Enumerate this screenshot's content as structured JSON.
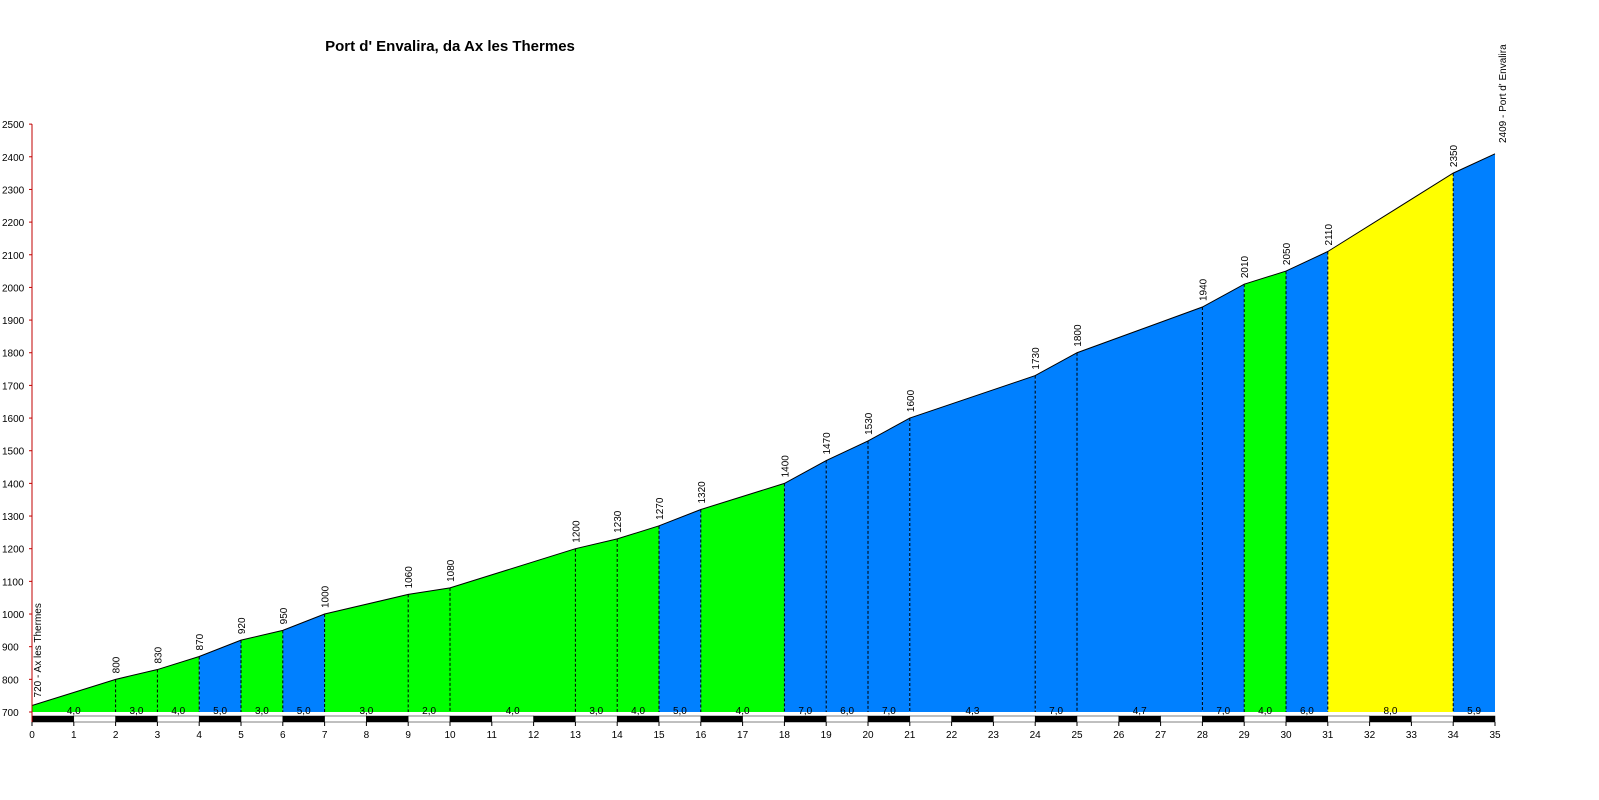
{
  "chart_data": {
    "type": "area",
    "title": "Port d' Envalira, da Ax les Thermes",
    "xlabel": "",
    "ylabel": "",
    "xlim": [
      0,
      35
    ],
    "ylim": [
      700,
      2500
    ],
    "x_ticks": [
      "0",
      "1",
      "2",
      "3",
      "4",
      "5",
      "6",
      "7",
      "8",
      "9",
      "10",
      "11",
      "12",
      "13",
      "14",
      "15",
      "16",
      "17",
      "18",
      "19",
      "20",
      "21",
      "22",
      "23",
      "24",
      "25",
      "26",
      "27",
      "28",
      "29",
      "30",
      "31",
      "32",
      "33",
      "34",
      "35"
    ],
    "y_ticks": [
      "700",
      "800",
      "900",
      "1000",
      "1100",
      "1200",
      "1300",
      "1400",
      "1500",
      "1600",
      "1700",
      "1800",
      "1900",
      "2000",
      "2100",
      "2200",
      "2300",
      "2400",
      "2500"
    ],
    "start_label": "720 - Ax les Thermes",
    "end_label": "2409 - Port d' Envalira",
    "colors": {
      "green": "#00ff00",
      "blue": "#0080ff",
      "yellow": "#ffff00"
    },
    "profile": [
      {
        "km": 0,
        "alt": 720
      },
      {
        "km": 2,
        "alt": 800,
        "label": "800"
      },
      {
        "km": 3,
        "alt": 830,
        "label": "830"
      },
      {
        "km": 4,
        "alt": 870,
        "label": "870"
      },
      {
        "km": 5,
        "alt": 920,
        "label": "920"
      },
      {
        "km": 6,
        "alt": 950,
        "label": "950"
      },
      {
        "km": 7,
        "alt": 1000,
        "label": "1000"
      },
      {
        "km": 9,
        "alt": 1060,
        "label": "1060"
      },
      {
        "km": 10,
        "alt": 1080,
        "label": "1080"
      },
      {
        "km": 13,
        "alt": 1200,
        "label": "1200"
      },
      {
        "km": 14,
        "alt": 1230,
        "label": "1230"
      },
      {
        "km": 15,
        "alt": 1270,
        "label": "1270"
      },
      {
        "km": 16,
        "alt": 1320,
        "label": "1320"
      },
      {
        "km": 18,
        "alt": 1400,
        "label": "1400"
      },
      {
        "km": 19,
        "alt": 1470,
        "label": "1470"
      },
      {
        "km": 20,
        "alt": 1530,
        "label": "1530"
      },
      {
        "km": 21,
        "alt": 1600,
        "label": "1600"
      },
      {
        "km": 24,
        "alt": 1730,
        "label": "1730"
      },
      {
        "km": 25,
        "alt": 1800,
        "label": "1800"
      },
      {
        "km": 28,
        "alt": 1940,
        "label": "1940"
      },
      {
        "km": 29,
        "alt": 2010,
        "label": "2010"
      },
      {
        "km": 30,
        "alt": 2050,
        "label": "2050"
      },
      {
        "km": 31,
        "alt": 2110,
        "label": "2110"
      },
      {
        "km": 34,
        "alt": 2350,
        "label": "2350"
      },
      {
        "km": 35,
        "alt": 2409
      }
    ],
    "segments": [
      {
        "from": 0,
        "to": 2,
        "gradient": "4,0",
        "color": "green"
      },
      {
        "from": 2,
        "to": 3,
        "gradient": "3,0",
        "color": "green"
      },
      {
        "from": 3,
        "to": 4,
        "gradient": "4,0",
        "color": "green"
      },
      {
        "from": 4,
        "to": 5,
        "gradient": "5,0",
        "color": "blue"
      },
      {
        "from": 5,
        "to": 6,
        "gradient": "3,0",
        "color": "green"
      },
      {
        "from": 6,
        "to": 7,
        "gradient": "5,0",
        "color": "blue"
      },
      {
        "from": 7,
        "to": 9,
        "gradient": "3,0",
        "color": "green"
      },
      {
        "from": 9,
        "to": 10,
        "gradient": "2,0",
        "color": "green"
      },
      {
        "from": 10,
        "to": 13,
        "gradient": "4,0",
        "color": "green"
      },
      {
        "from": 13,
        "to": 14,
        "gradient": "3,0",
        "color": "green"
      },
      {
        "from": 14,
        "to": 15,
        "gradient": "4,0",
        "color": "green"
      },
      {
        "from": 15,
        "to": 16,
        "gradient": "5,0",
        "color": "blue"
      },
      {
        "from": 16,
        "to": 18,
        "gradient": "4,0",
        "color": "green"
      },
      {
        "from": 18,
        "to": 19,
        "gradient": "7,0",
        "color": "blue"
      },
      {
        "from": 19,
        "to": 20,
        "gradient": "6,0",
        "color": "blue"
      },
      {
        "from": 20,
        "to": 21,
        "gradient": "7,0",
        "color": "blue"
      },
      {
        "from": 21,
        "to": 24,
        "gradient": "4,3",
        "color": "blue"
      },
      {
        "from": 24,
        "to": 25,
        "gradient": "7,0",
        "color": "blue"
      },
      {
        "from": 25,
        "to": 28,
        "gradient": "4,7",
        "color": "blue"
      },
      {
        "from": 28,
        "to": 29,
        "gradient": "7,0",
        "color": "blue"
      },
      {
        "from": 29,
        "to": 30,
        "gradient": "4,0",
        "color": "green"
      },
      {
        "from": 30,
        "to": 31,
        "gradient": "6,0",
        "color": "blue"
      },
      {
        "from": 31,
        "to": 34,
        "gradient": "8,0",
        "color": "yellow"
      },
      {
        "from": 34,
        "to": 35,
        "gradient": "5,9",
        "color": "blue"
      }
    ]
  }
}
